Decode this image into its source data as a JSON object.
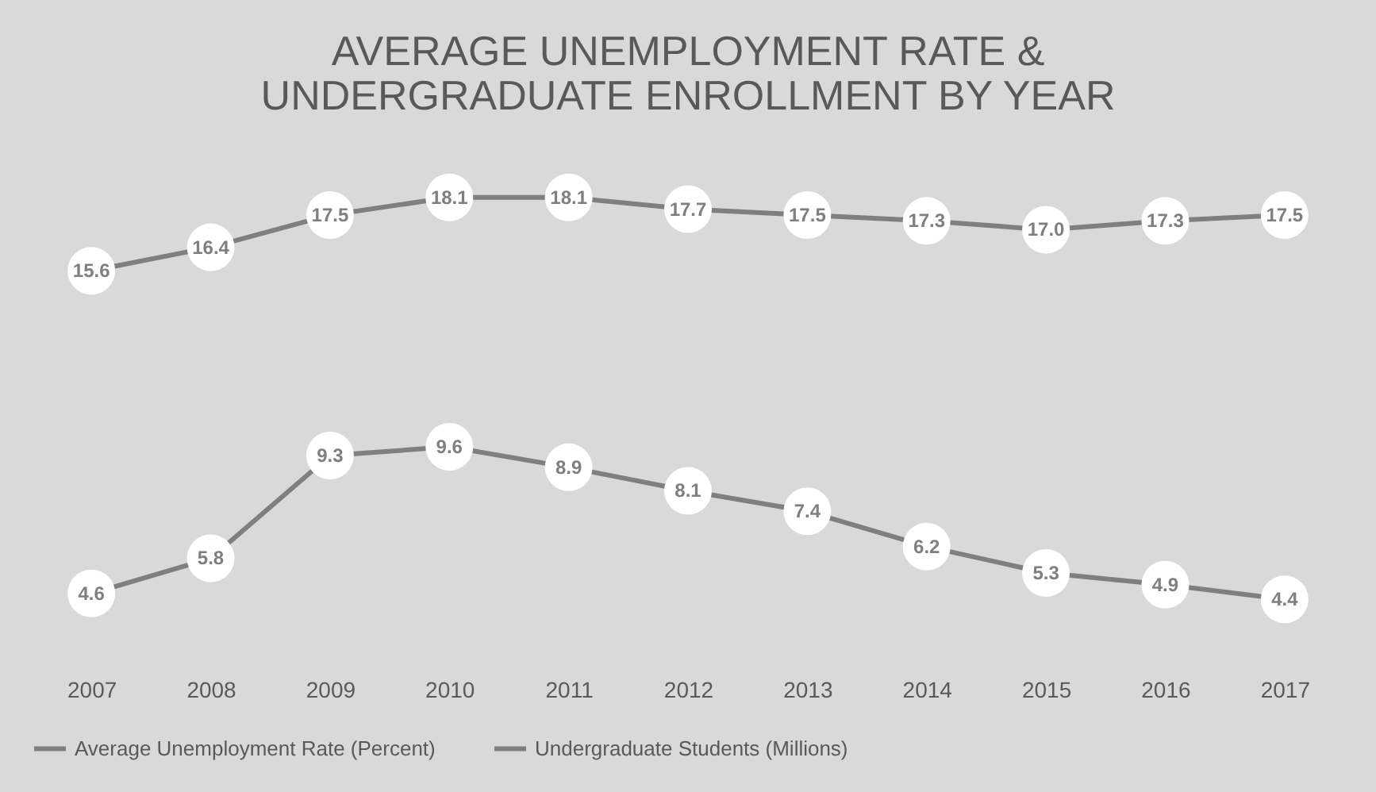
{
  "chart_data": {
    "type": "line",
    "title": "AVERAGE UNEMPLOYMENT RATE & UNDERGRADUATE ENROLLMENT BY YEAR",
    "categories": [
      "2007",
      "2008",
      "2009",
      "2010",
      "2011",
      "2012",
      "2013",
      "2014",
      "2015",
      "2016",
      "2017"
    ],
    "series": [
      {
        "name": "Average Unemployment Rate (Percent)",
        "color": "#7f7f7f",
        "values": [
          4.6,
          5.8,
          9.3,
          9.6,
          8.9,
          8.1,
          7.4,
          6.2,
          5.3,
          4.9,
          4.4
        ],
        "value_labels": [
          "4.6",
          "5.8",
          "9.3",
          "9.6",
          "8.9",
          "8.1",
          "7.4",
          "6.2",
          "5.3",
          "4.9",
          "4.4"
        ]
      },
      {
        "name": "Undergraduate Students (Millions)",
        "color": "#7f7f7f",
        "values": [
          15.6,
          16.4,
          17.5,
          18.1,
          18.1,
          17.7,
          17.5,
          17.3,
          17.0,
          17.3,
          17.5
        ],
        "value_labels": [
          "15.6",
          "16.4",
          "17.5",
          "18.1",
          "18.1",
          "17.7",
          "17.5",
          "17.3",
          "17.0",
          "17.3",
          "17.5"
        ]
      }
    ],
    "marker": "circle",
    "line_style": "solid",
    "legend": "bottom",
    "tick_labels": "x"
  }
}
